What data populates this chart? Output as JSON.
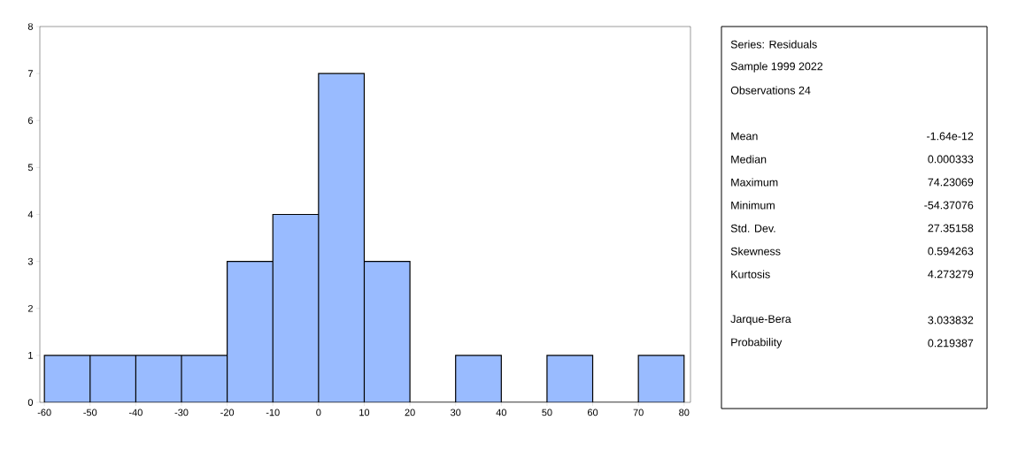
{
  "chart_data": [
    {
      "type": "histogram",
      "bins": [
        -60,
        -50,
        -40,
        -30,
        -20,
        -10,
        0,
        10,
        20,
        30,
        40,
        50,
        60,
        70,
        80
      ],
      "values": [
        1,
        1,
        1,
        1,
        3,
        4,
        7,
        3,
        0,
        1,
        0,
        1,
        0,
        1
      ],
      "color": "#99bbff",
      "xlim": [
        -61,
        81.4
      ],
      "ylim": [
        0,
        8
      ],
      "xticks": [
        -60,
        -50,
        -40,
        -30,
        -20,
        -10,
        0,
        10,
        20,
        30,
        40,
        50,
        60,
        70,
        80
      ],
      "yticks": [
        0,
        1,
        2,
        3,
        4,
        5,
        6,
        7,
        8
      ]
    },
    {
      "type": "other",
      "annotations": [
        "Series: Residuals",
        "Sample 1999 2022",
        "Observations 24",
        "Mean",
        "-1.64e-12",
        "Median",
        "0.000333",
        "Maximum",
        "74.23069",
        "Minimum",
        "-54.37076",
        "Std. Dev.",
        "27.35158",
        "Skewness",
        "0.594263",
        "Kurtosis",
        "4.273279",
        "Jarque-Bera",
        "3.033832",
        "Probability",
        "0.219387"
      ]
    }
  ]
}
